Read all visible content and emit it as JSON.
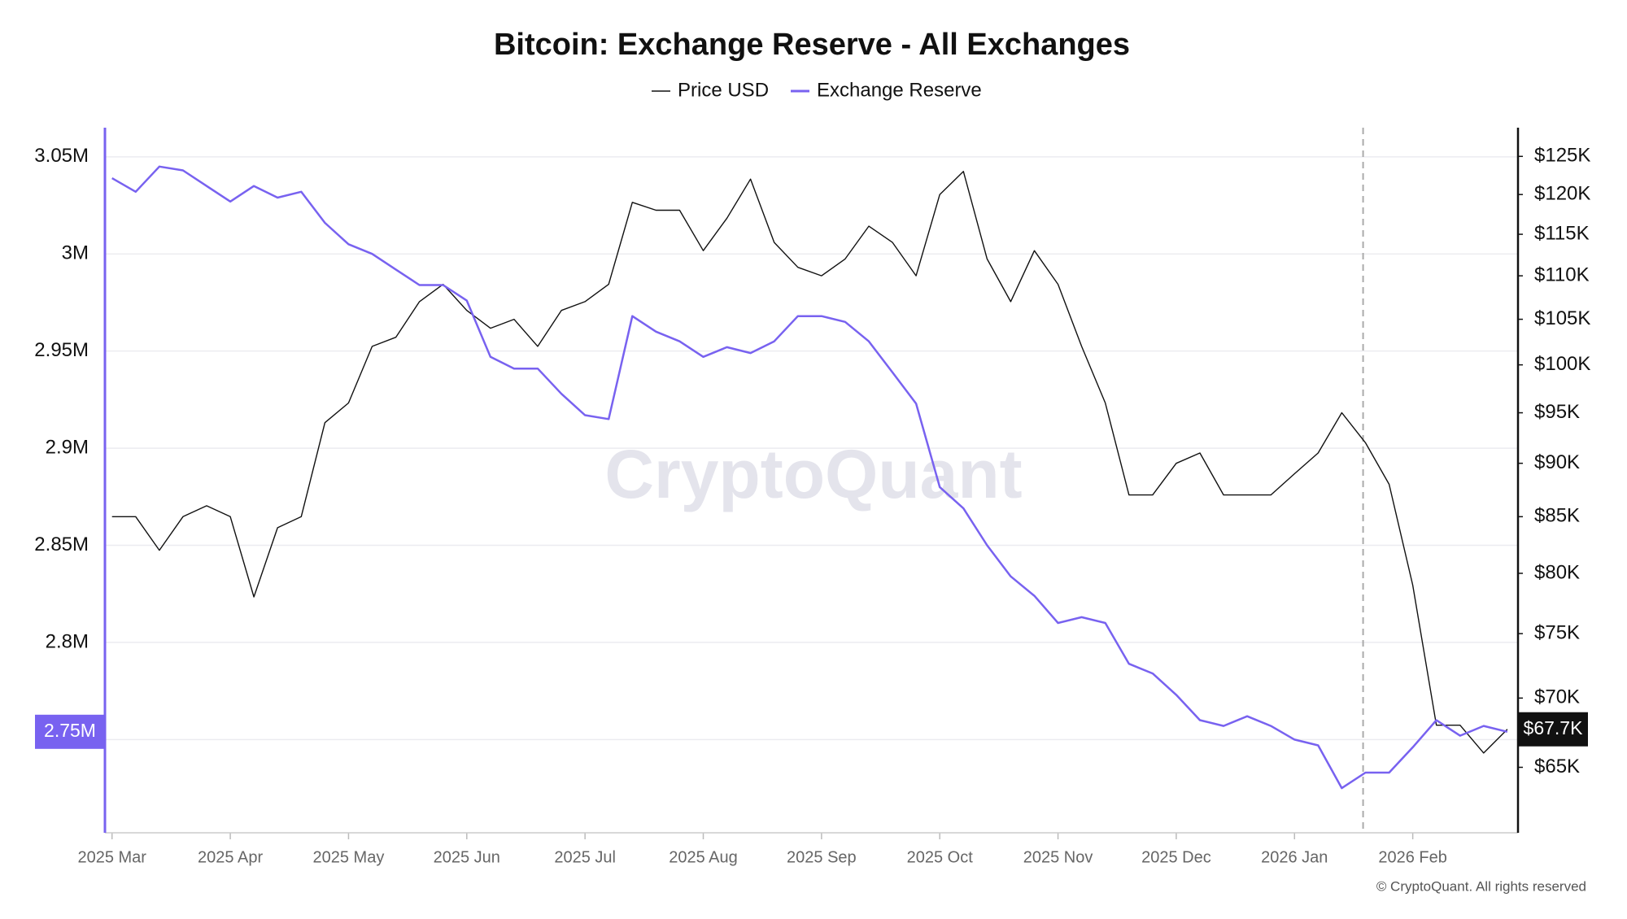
{
  "chart_data": {
    "type": "line",
    "title": "Bitcoin: Exchange Reserve - All Exchanges",
    "watermark": "CryptoQuant",
    "copyright": "© CryptoQuant. All rights reserved",
    "x": [
      0,
      0.2,
      0.4,
      0.6,
      0.8,
      1,
      1.2,
      1.4,
      1.6,
      1.8,
      2,
      2.2,
      2.4,
      2.6,
      2.8,
      3,
      3.2,
      3.4,
      3.6,
      3.8,
      4,
      4.2,
      4.4,
      4.6,
      4.8,
      5,
      5.2,
      5.4,
      5.6,
      5.8,
      6,
      6.2,
      6.4,
      6.6,
      6.8,
      7,
      7.2,
      7.4,
      7.6,
      7.8,
      8,
      8.2,
      8.4,
      8.6,
      8.8,
      9,
      9.2,
      9.4,
      9.6,
      9.8,
      10,
      10.2,
      10.4,
      10.6,
      10.8,
      11,
      11.2,
      11.4,
      11.6,
      11.8
    ],
    "xlim": [
      -0.06,
      11.89
    ],
    "xticks": [
      {
        "value": 0,
        "label": "2025 Mar"
      },
      {
        "value": 1,
        "label": "2025 Apr"
      },
      {
        "value": 2,
        "label": "2025 May"
      },
      {
        "value": 3,
        "label": "2025 Jun"
      },
      {
        "value": 4,
        "label": "2025 Jul"
      },
      {
        "value": 5,
        "label": "2025 Aug"
      },
      {
        "value": 6,
        "label": "2025 Sep"
      },
      {
        "value": 7,
        "label": "2025 Oct"
      },
      {
        "value": 8,
        "label": "2025 Nov"
      },
      {
        "value": 9,
        "label": "2025 Dec"
      },
      {
        "value": 10,
        "label": "2026 Jan"
      },
      {
        "value": 11,
        "label": "2026 Feb"
      }
    ],
    "ylim": [
      2702000,
      3065000
    ],
    "yticks": [
      {
        "value": 2750000,
        "label": "2.75M"
      },
      {
        "value": 2800000,
        "label": "2.8M"
      },
      {
        "value": 2850000,
        "label": "2.85M"
      },
      {
        "value": 2900000,
        "label": "2.9M"
      },
      {
        "value": 2950000,
        "label": "2.95M"
      },
      {
        "value": 3000000,
        "label": "3M"
      },
      {
        "value": 3050000,
        "label": "3.05M"
      }
    ],
    "y2lim": [
      60600,
      128900
    ],
    "y2_log": true,
    "y2ticks": [
      {
        "value": 65000,
        "label": "$65K"
      },
      {
        "value": 70000,
        "label": "$70K"
      },
      {
        "value": 75000,
        "label": "$75K"
      },
      {
        "value": 80000,
        "label": "$80K"
      },
      {
        "value": 85000,
        "label": "$85K"
      },
      {
        "value": 90000,
        "label": "$90K"
      },
      {
        "value": 95000,
        "label": "$95K"
      },
      {
        "value": 100000,
        "label": "$100K"
      },
      {
        "value": 105000,
        "label": "$105K"
      },
      {
        "value": 110000,
        "label": "$110K"
      },
      {
        "value": 115000,
        "label": "$115K"
      },
      {
        "value": 120000,
        "label": "$120K"
      },
      {
        "value": 125000,
        "label": "$125K"
      }
    ],
    "grid": true,
    "vline_x": 10.58,
    "series": [
      {
        "name": "Price USD",
        "color": "#111111",
        "axis": "y2",
        "last_label": "$67.7K",
        "values": [
          85000,
          85000,
          82000,
          85000,
          86000,
          85000,
          78000,
          84000,
          85000,
          94000,
          96000,
          102000,
          103000,
          107000,
          109000,
          106000,
          104000,
          105000,
          102000,
          106000,
          107000,
          109000,
          119000,
          118000,
          118000,
          113000,
          117000,
          122000,
          114000,
          111000,
          110000,
          112000,
          116000,
          114000,
          110000,
          120000,
          123000,
          112000,
          107000,
          113000,
          109000,
          102000,
          96000,
          87000,
          87000,
          90000,
          91000,
          87000,
          87000,
          87000,
          89000,
          91000,
          95000,
          92000,
          88000,
          79000,
          68000,
          68000,
          66000,
          67700
        ]
      },
      {
        "name": "Exchange Reserve",
        "color": "#7862f0",
        "axis": "y",
        "last_label": "2.75M",
        "values": [
          3039000,
          3032000,
          3045000,
          3043000,
          3035000,
          3027000,
          3035000,
          3029000,
          3032000,
          3016000,
          3005000,
          3000000,
          2992000,
          2984000,
          2984000,
          2976000,
          2947000,
          2941000,
          2941000,
          2928000,
          2917000,
          2915000,
          2968000,
          2960000,
          2955000,
          2947000,
          2952000,
          2949000,
          2955000,
          2968000,
          2968000,
          2965000,
          2955000,
          2939000,
          2923000,
          2880000,
          2869000,
          2850000,
          2834000,
          2824000,
          2810000,
          2813000,
          2810000,
          2789000,
          2784000,
          2773000,
          2760000,
          2757000,
          2762000,
          2757000,
          2750000,
          2747000,
          2725000,
          2733000,
          2733000,
          2746000,
          2760000,
          2752000,
          2757000,
          2754000
        ]
      }
    ]
  }
}
